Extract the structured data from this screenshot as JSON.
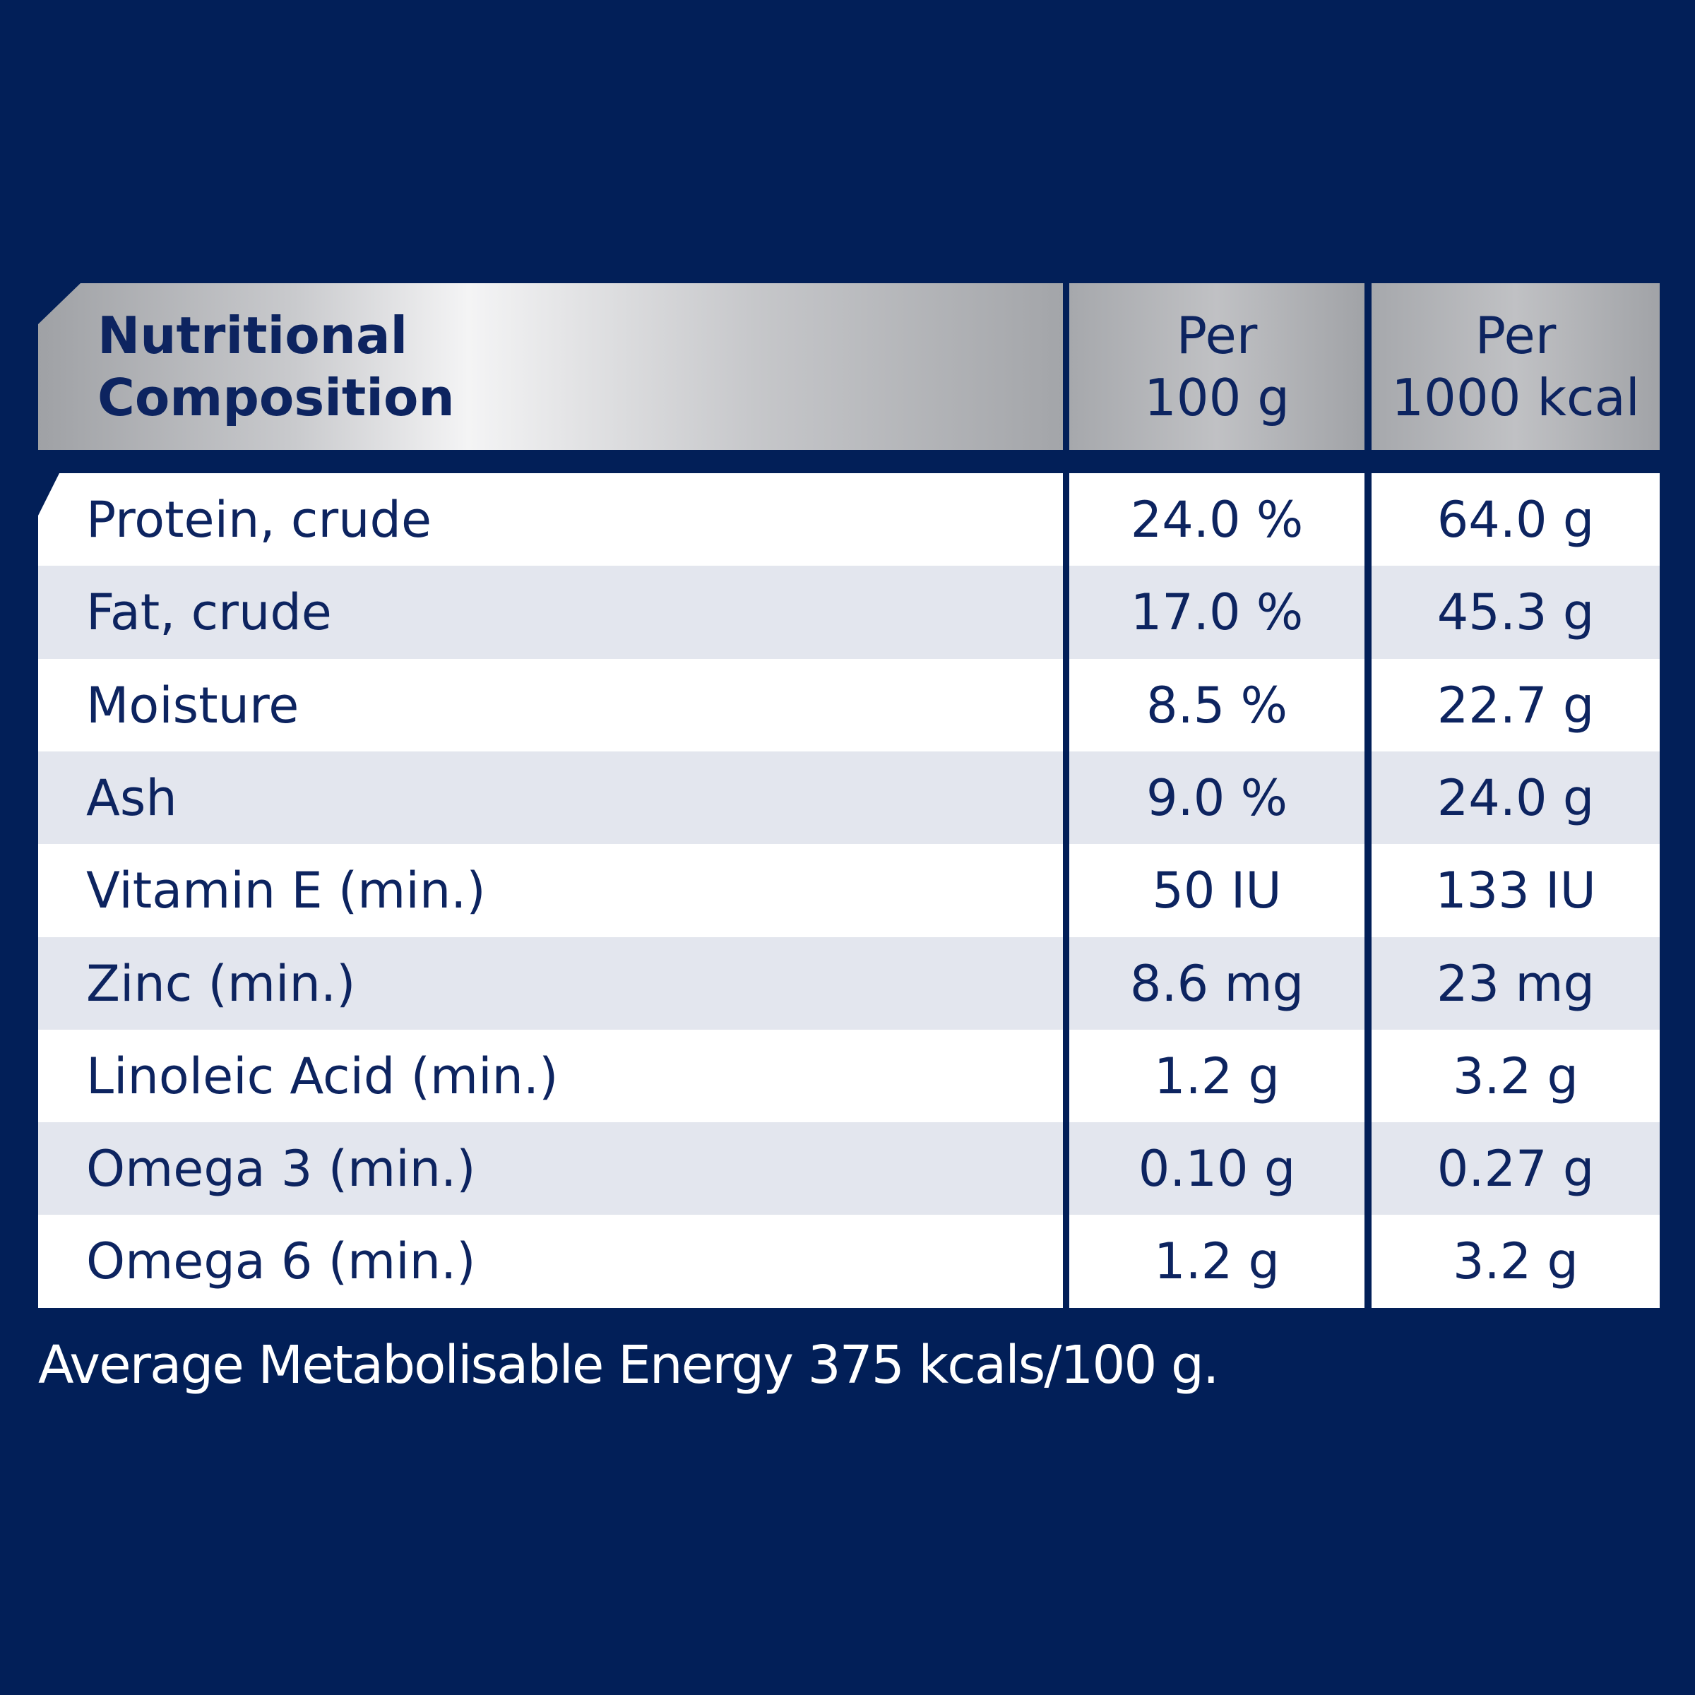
{
  "table": {
    "header": [
      [
        "Nutritional",
        "Composition"
      ],
      [
        "Per",
        "100 g"
      ],
      [
        "Per",
        "1000 kcal"
      ]
    ],
    "rows": [
      [
        "Protein, crude",
        "24.0 %",
        "64.0 g"
      ],
      [
        "Fat, crude",
        "17.0 %",
        "45.3 g"
      ],
      [
        "Moisture",
        "8.5 %",
        "22.7 g"
      ],
      [
        "Ash",
        "9.0 %",
        "24.0 g"
      ],
      [
        "Vitamin E (min.)",
        "50 IU",
        "133 IU"
      ],
      [
        "Zinc (min.)",
        "8.6 mg",
        "23 mg"
      ],
      [
        "Linoleic Acid (min.)",
        "1.2 g",
        "3.2 g"
      ],
      [
        "Omega 3 (min.)",
        "0.10 g",
        "0.27 g"
      ],
      [
        "Omega 6 (min.)",
        "1.2 g",
        "3.2 g"
      ]
    ]
  },
  "footer": "Average Metabolisable Energy 375 kcals/100 g."
}
